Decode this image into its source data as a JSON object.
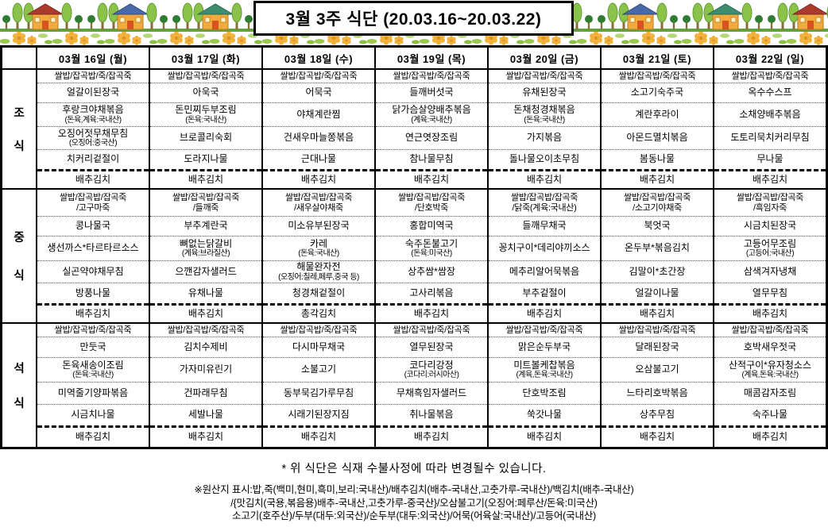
{
  "title": "3월 3주 식단 (20.03.16~20.03.22)",
  "table": {
    "day_headers": [
      "03월 16일 (월)",
      "03월 17일 (화)",
      "03월 18일 (수)",
      "03월 19일 (목)",
      "03월 20일 (금)",
      "03월 21일 (토)",
      "03월 22일 (일)"
    ],
    "meals": [
      {
        "name": "조식",
        "label_chars": [
          "조",
          "식"
        ],
        "days": [
          [
            [
              "쌀밥/잡곡밥/죽/잡곡죽"
            ],
            [
              "얼갈이된장국"
            ],
            [
              "후랑크야채볶음",
              "(돈육,계육:국내산)"
            ],
            [
              "오징어젓무채무침",
              "(오징어:중국산)"
            ],
            [
              "치커리겉절이"
            ],
            [
              "배추김치"
            ]
          ],
          [
            [
              "쌀밥/잡곡밥/죽/잡곡죽"
            ],
            [
              "아욱국"
            ],
            [
              "돈민찌두부조림",
              "(돈육:국내산)"
            ],
            [
              "브로콜리숙회"
            ],
            [
              "도라지나물"
            ],
            [
              "배추김치"
            ]
          ],
          [
            [
              "쌀밥/잡곡밥/죽/잡곡죽"
            ],
            [
              "어묵국"
            ],
            [
              "야채계란찜"
            ],
            [
              "건새우마늘쫑볶음"
            ],
            [
              "근대나물"
            ],
            [
              "배추김치"
            ]
          ],
          [
            [
              "쌀밥/잡곡밥/죽/잡곡죽"
            ],
            [
              "들깨버섯국"
            ],
            [
              "닭가슴살양배추볶음",
              "(계육:국내산)"
            ],
            [
              "연근엿장조림"
            ],
            [
              "참나물무침"
            ],
            [
              "배추김치"
            ]
          ],
          [
            [
              "쌀밥/잡곡밥/죽/잡곡죽"
            ],
            [
              "유채된장국"
            ],
            [
              "돈채청경채볶음",
              "(돈육:국내산)"
            ],
            [
              "가지볶음"
            ],
            [
              "돌나물오이초무침"
            ],
            [
              "배추김치"
            ]
          ],
          [
            [
              "쌀밥/잡곡밥/죽/잡곡죽"
            ],
            [
              "소고기숙주국"
            ],
            [
              "계란후라이"
            ],
            [
              "아몬드멸치볶음"
            ],
            [
              "봄동나물"
            ],
            [
              "배추김치"
            ]
          ],
          [
            [
              "쌀밥/잡곡밥/죽/잡곡죽"
            ],
            [
              "옥수수스프"
            ],
            [
              "소채양배추볶음"
            ],
            [
              "도토리묵치커리무침"
            ],
            [
              "무나물"
            ],
            [
              "배추김치"
            ]
          ]
        ]
      },
      {
        "name": "중식",
        "label_chars": [
          "중",
          "식"
        ],
        "days": [
          [
            [
              "쌀밥/잡곡밥/잡곡죽",
              "/고구마죽"
            ],
            [
              "콩나물국"
            ],
            [
              "생선까스*타르타르소스"
            ],
            [
              "실곤약야채무침"
            ],
            [
              "방풍나물"
            ],
            [
              "배추김치"
            ]
          ],
          [
            [
              "쌀밥/잡곡밥/잡곡죽",
              "/들깨죽"
            ],
            [
              "부추계란국"
            ],
            [
              "뼈없는닭갈비",
              "(계육:브라질산)"
            ],
            [
              "으깬감자샐러드"
            ],
            [
              "유채나물"
            ],
            [
              "배추김치"
            ]
          ],
          [
            [
              "쌀밥/잡곡밥/잡곡죽",
              "/새우살야채죽"
            ],
            [
              "미소유부된장국"
            ],
            [
              "카레",
              "(돈육:국내산)"
            ],
            [
              "해물완자전",
              "(오징어:칠레,페루,중국 등)"
            ],
            [
              "청경채겉절이"
            ],
            [
              "총각김치"
            ]
          ],
          [
            [
              "쌀밥/잡곡밥/잡곡죽",
              "/단호박죽"
            ],
            [
              "홍합미역국"
            ],
            [
              "숙주돈불고기",
              "(돈육:미국산)"
            ],
            [
              "상추쌈*쌈장"
            ],
            [
              "고사리볶음"
            ],
            [
              "배추김치"
            ]
          ],
          [
            [
              "쌀밥/잡곡밥/잡곡죽",
              "/닭죽(계육:국내산)"
            ],
            [
              "들깨무채국"
            ],
            [
              "꽁치구이*데리야끼소스"
            ],
            [
              "메추리알어묵볶음"
            ],
            [
              "부추겉절이"
            ],
            [
              "배추김치"
            ]
          ],
          [
            [
              "쌀밥/잡곡밥/잡곡죽",
              "/소고기야채죽"
            ],
            [
              "북엇국"
            ],
            [
              "온두부*볶음김치"
            ],
            [
              "김말이*초간장"
            ],
            [
              "얼갈이나물"
            ],
            [
              "배추김치"
            ]
          ],
          [
            [
              "쌀밥/잡곡밥/잡곡죽",
              "/흑임자죽"
            ],
            [
              "시금치된장국"
            ],
            [
              "고등어무조림",
              "(고등어:국내산)"
            ],
            [
              "삼색겨자냉채"
            ],
            [
              "열무무침"
            ],
            [
              "배추김치"
            ]
          ]
        ]
      },
      {
        "name": "석식",
        "label_chars": [
          "석",
          "식"
        ],
        "days": [
          [
            [
              "쌀밥/잡곡밥/죽/잡곡죽"
            ],
            [
              "만둣국"
            ],
            [
              "돈육새송이조림",
              "(돈육:국내산)"
            ],
            [
              "미역줄기양파볶음"
            ],
            [
              "시금치나물"
            ],
            [
              "배추김치"
            ]
          ],
          [
            [
              "쌀밥/잡곡밥/죽/잡곡죽"
            ],
            [
              "김치수제비"
            ],
            [
              "가자미유린기"
            ],
            [
              "건파래무침"
            ],
            [
              "세발나물"
            ],
            [
              "배추김치"
            ]
          ],
          [
            [
              "쌀밥/잡곡밥/죽/잡곡죽"
            ],
            [
              "다시마무채국"
            ],
            [
              "소불고기"
            ],
            [
              "동부묵김가루무침"
            ],
            [
              "시래기된장지짐"
            ],
            [
              "배추김치"
            ]
          ],
          [
            [
              "쌀밥/잡곡밥/죽/잡곡죽"
            ],
            [
              "열무된장국"
            ],
            [
              "코다리강정",
              "(코다리:러시아산)"
            ],
            [
              "무채흑임자샐러드"
            ],
            [
              "취나물볶음"
            ],
            [
              "배추김치"
            ]
          ],
          [
            [
              "쌀밥/잡곡밥/죽/잡곡죽"
            ],
            [
              "맑은순두부국"
            ],
            [
              "미트볼케찹볶음",
              "(계육,돈육:국내산)"
            ],
            [
              "단호박조림"
            ],
            [
              "쑥갓나물"
            ],
            [
              "배추김치"
            ]
          ],
          [
            [
              "쌀밥/잡곡밥/죽/잡곡죽"
            ],
            [
              "달래된장국"
            ],
            [
              "오삼불고기"
            ],
            [
              "느타리호박볶음"
            ],
            [
              "상추무침"
            ],
            [
              "배추김치"
            ]
          ],
          [
            [
              "쌀밥/잡곡밥/죽/잡곡죽"
            ],
            [
              "호박새우젓국"
            ],
            [
              "산적구이*유자청소스",
              "(계육,돈육:국내산)"
            ],
            [
              "매콤감자조림"
            ],
            [
              "숙주나물"
            ],
            [
              "배추김치"
            ]
          ]
        ]
      }
    ]
  },
  "footer": {
    "note": "*  위 식단은 식재 수불사정에 따라 변경될수 있습니다.",
    "origin_lines": [
      "※원산지 표시:밥,죽(백미,현미,흑미,보리:국내산)/배추김치(배추-국내산,고춧가루-국내산)/백김치(배추-국내산)",
      "/{맛김치(국용,볶음용)배추-국내산,고춧가루-중국산}/오삼불고기(오징어:페루산/돈육:미국산)",
      "소고기(호주산)/두부(대두:외국산)/순두부(대두:외국산)/어묵(어육살:국내산)/고등어(국내산)"
    ]
  },
  "decoration": {
    "icons": [
      "house-icon",
      "tree-icon",
      "flower-icon",
      "leaf-icon"
    ],
    "colors": {
      "roof_red": "#ab3a2c",
      "roof_blue": "#4a69a8",
      "roof_green": "#3f8d70",
      "house_body": "#f2a93d",
      "tree_light": "#8bc34a",
      "tree_dark": "#2f7d33",
      "ground": "#63a23b",
      "flower": "#f2b23a",
      "leaf": "#9cc94d"
    }
  }
}
